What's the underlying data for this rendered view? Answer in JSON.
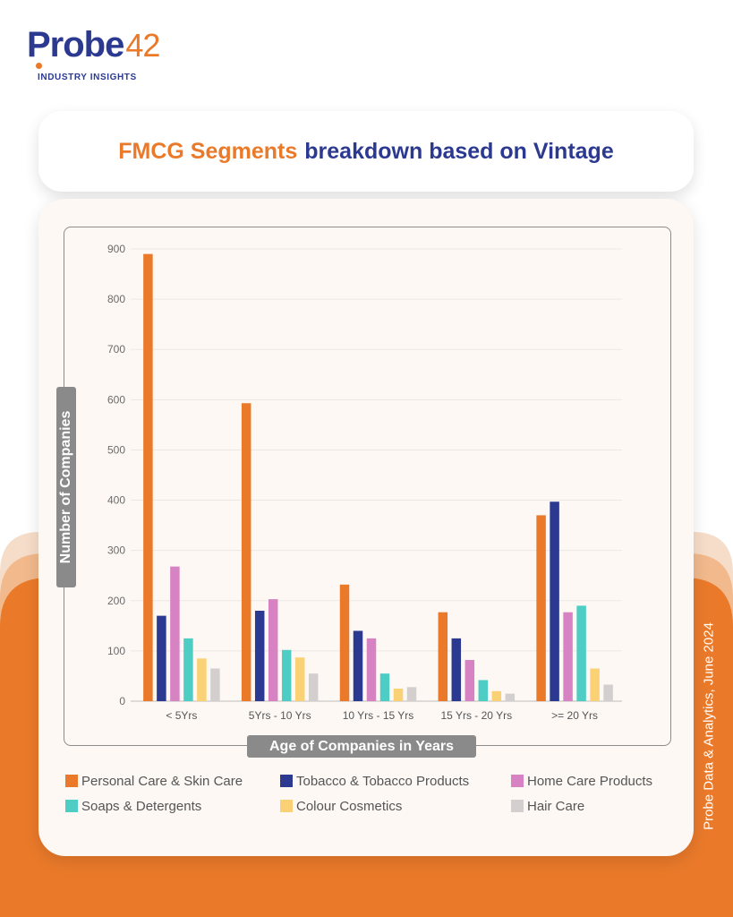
{
  "brand": {
    "logo_main": "Probe",
    "logo_number": "42",
    "tagline": "INDUSTRY INSIGHTS"
  },
  "heading": {
    "part_highlight": "FMCG Segments",
    "part_rest": "breakdown based on Vintage"
  },
  "side_note": "Probe Data & Analytics, June 2024",
  "colors": {
    "brand_orange": "#ea7a2a",
    "brand_blue": "#2b3990"
  },
  "legend": [
    {
      "label": "Personal Care & Skin Care",
      "color": "#ea7a2a"
    },
    {
      "label": "Tobacco & Tobacco Products",
      "color": "#2b3990"
    },
    {
      "label": "Home Care Products",
      "color": "#d783c3"
    },
    {
      "label": "Soaps & Detergents",
      "color": "#4ecdc4"
    },
    {
      "label": "Colour Cosmetics",
      "color": "#fbd175"
    },
    {
      "label": "Hair Care",
      "color": "#d3cfcf"
    }
  ],
  "chart_data": {
    "type": "bar",
    "xlabel": "Age of Companies in Years",
    "ylabel": "Number of Companies",
    "ylim": [
      0,
      900
    ],
    "yticks": [
      0,
      100,
      200,
      300,
      400,
      500,
      600,
      700,
      800,
      900
    ],
    "grid": true,
    "categories": [
      "< 5Yrs",
      "5Yrs - 10 Yrs",
      "10 Yrs - 15 Yrs",
      "15 Yrs - 20 Yrs",
      ">= 20 Yrs"
    ],
    "series": [
      {
        "name": "Personal Care & Skin Care",
        "color": "#ea7a2a",
        "values": [
          890,
          593,
          232,
          177,
          370
        ]
      },
      {
        "name": "Tobacco & Tobacco Products",
        "color": "#2b3990",
        "values": [
          170,
          180,
          140,
          125,
          397
        ]
      },
      {
        "name": "Home Care Products",
        "color": "#d783c3",
        "values": [
          268,
          203,
          125,
          82,
          177
        ]
      },
      {
        "name": "Soaps & Detergents",
        "color": "#4ecdc4",
        "values": [
          125,
          102,
          55,
          42,
          190
        ]
      },
      {
        "name": "Colour Cosmetics",
        "color": "#fbd175",
        "values": [
          85,
          87,
          25,
          20,
          65
        ]
      },
      {
        "name": "Hair Care",
        "color": "#d3cfcf",
        "values": [
          65,
          55,
          28,
          15,
          33
        ]
      }
    ]
  }
}
